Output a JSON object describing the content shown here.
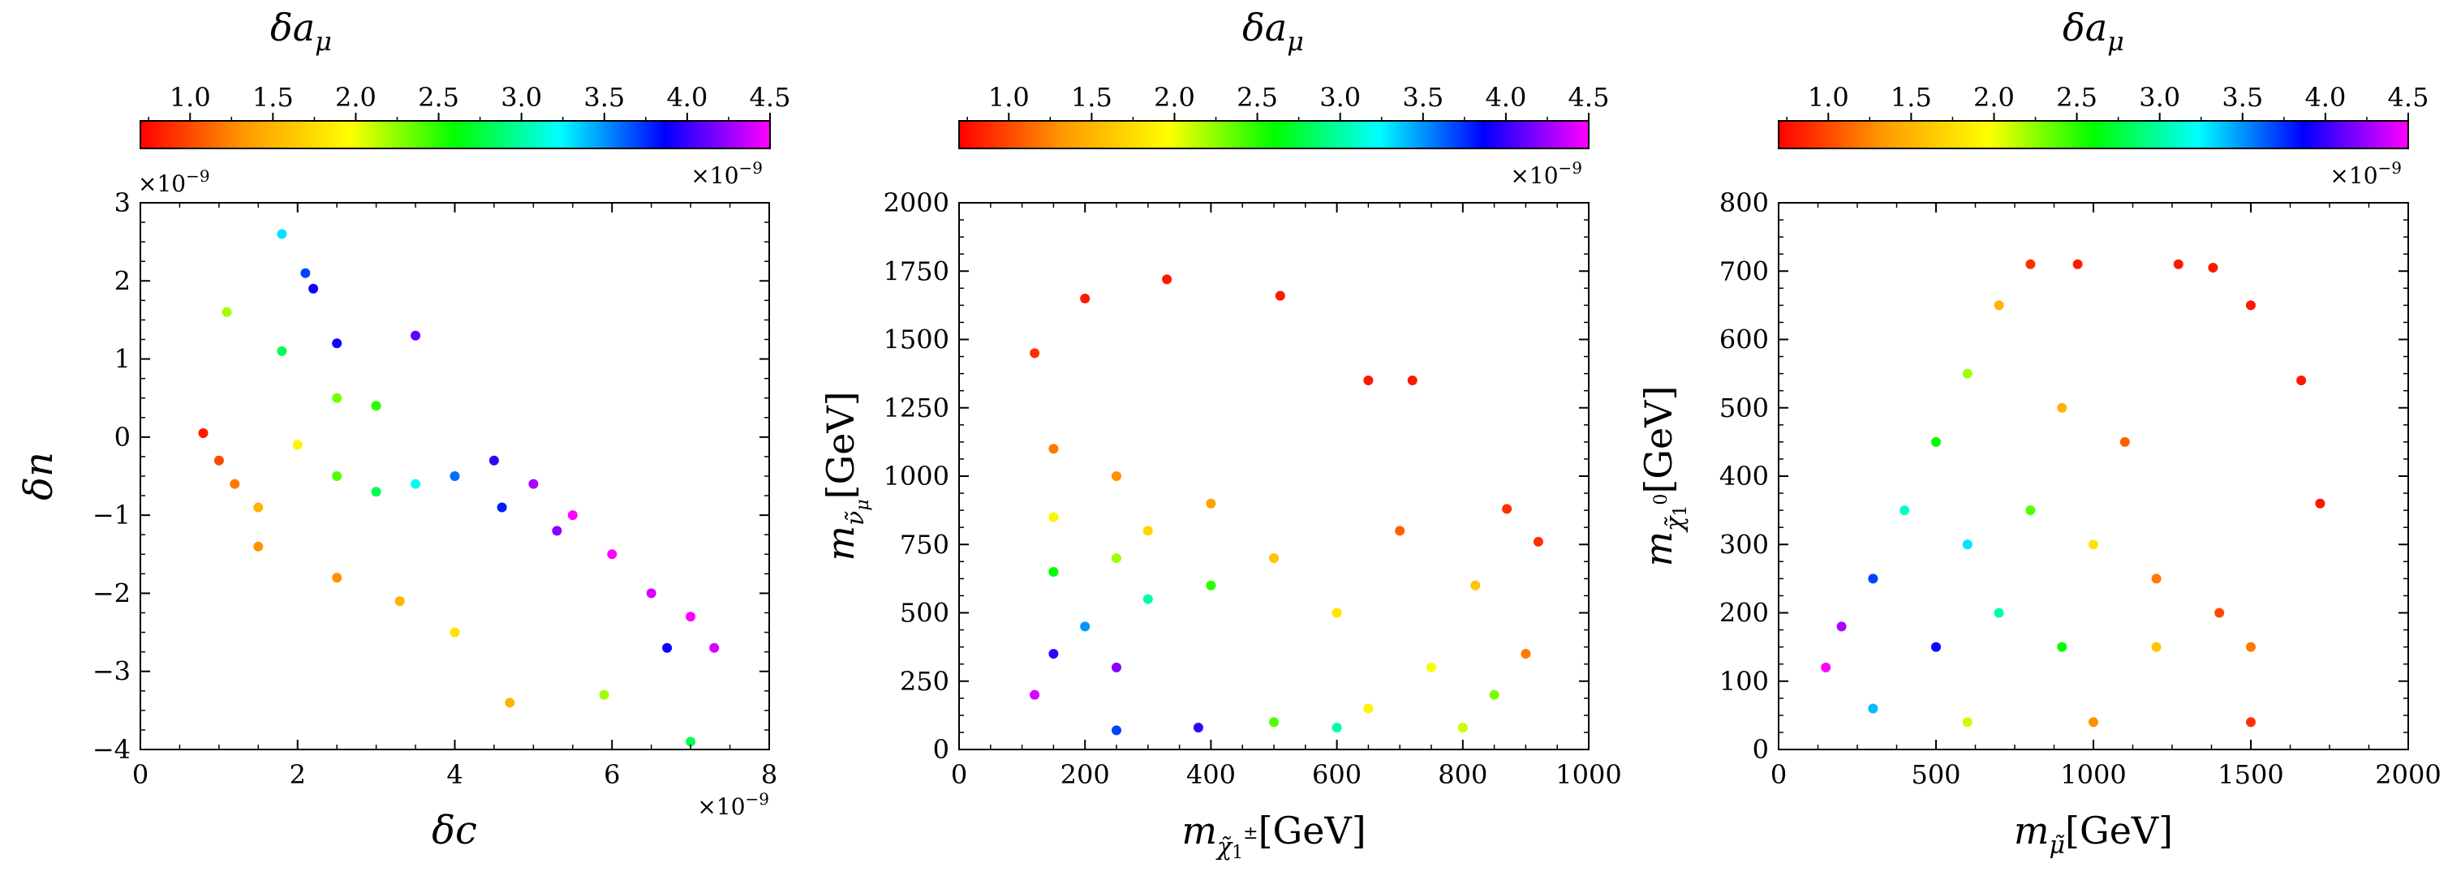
{
  "figure_title": "",
  "colorbar": {
    "symbol": "δ",
    "var": "a",
    "sub": "μ",
    "ticks": [
      "1.0",
      "1.5",
      "2.0",
      "2.5",
      "3.0",
      "3.5",
      "4.0",
      "4.5"
    ],
    "tick_values": [
      1.0,
      1.5,
      2.0,
      2.5,
      3.0,
      3.5,
      4.0,
      4.5
    ],
    "range": [
      0.7,
      4.5
    ],
    "exponent": "×10",
    "exponent_power": "−9",
    "colormap": "gist_rainbow",
    "colormap_stops": [
      "#ff0000",
      "#ff9900",
      "#ffff00",
      "#00ff00",
      "#00ffff",
      "#0000ff",
      "#ff00ff"
    ]
  },
  "chart_data": [
    {
      "type": "scatter",
      "title": "",
      "xlabel": "δc",
      "ylabel": "δn",
      "xlim": [
        0,
        8
      ],
      "ylim": [
        -4,
        3
      ],
      "xticks": [
        "0",
        "2",
        "4",
        "6",
        "8"
      ],
      "xtick_values": [
        0,
        2,
        4,
        6,
        8
      ],
      "yticks": [
        "−4",
        "−3",
        "−2",
        "−1",
        "0",
        "1",
        "2",
        "3"
      ],
      "ytick_values": [
        -4,
        -3,
        -2,
        -1,
        0,
        1,
        2,
        3
      ],
      "x_exponent": "×10",
      "y_exponent": "×10",
      "exp_power": "−9",
      "color_by": "δa_μ (×10⁻⁹)",
      "points": [
        [
          0.8,
          0.05,
          0.8
        ],
        [
          1.0,
          -0.3,
          1.0
        ],
        [
          1.2,
          -0.6,
          1.2
        ],
        [
          1.5,
          -0.9,
          1.5
        ],
        [
          1.5,
          -1.4,
          1.3
        ],
        [
          1.8,
          2.6,
          3.3
        ],
        [
          2.1,
          2.1,
          3.7
        ],
        [
          2.2,
          1.9,
          3.9
        ],
        [
          2.5,
          1.2,
          3.9
        ],
        [
          3.5,
          1.3,
          4.1
        ],
        [
          1.1,
          1.6,
          2.2
        ],
        [
          1.8,
          1.1,
          2.8
        ],
        [
          2.0,
          -0.1,
          1.9
        ],
        [
          2.5,
          -0.5,
          2.4
        ],
        [
          3.0,
          -0.7,
          2.8
        ],
        [
          3.5,
          -0.6,
          3.2
        ],
        [
          4.0,
          -0.5,
          3.6
        ],
        [
          4.5,
          -0.3,
          4.0
        ],
        [
          5.0,
          -0.6,
          4.3
        ],
        [
          5.5,
          -1.0,
          4.5
        ],
        [
          6.0,
          -1.5,
          4.5
        ],
        [
          6.5,
          -2.0,
          4.4
        ],
        [
          7.0,
          -2.3,
          4.5
        ],
        [
          7.3,
          -2.7,
          4.4
        ],
        [
          4.7,
          -3.4,
          1.5
        ],
        [
          5.9,
          -3.3,
          2.2
        ],
        [
          7.0,
          -3.9,
          2.8
        ],
        [
          4.0,
          -2.5,
          1.8
        ],
        [
          3.3,
          -2.1,
          1.5
        ],
        [
          2.5,
          -1.8,
          1.3
        ],
        [
          6.7,
          -2.7,
          3.9
        ],
        [
          3.0,
          0.4,
          2.5
        ],
        [
          2.5,
          0.5,
          2.3
        ],
        [
          4.6,
          -0.9,
          3.8
        ],
        [
          5.3,
          -1.2,
          4.2
        ]
      ]
    },
    {
      "type": "scatter",
      "title": "",
      "xlabel": "m_χ̃₁^± [GeV]",
      "ylabel": "m_ν̃_μ [GeV]",
      "xlim": [
        0,
        1000
      ],
      "ylim": [
        0,
        2000
      ],
      "xticks": [
        "0",
        "200",
        "400",
        "600",
        "800",
        "1000"
      ],
      "xtick_values": [
        0,
        200,
        400,
        600,
        800,
        1000
      ],
      "yticks": [
        "0",
        "250",
        "500",
        "750",
        "1000",
        "1250",
        "1500",
        "1750",
        "2000"
      ],
      "ytick_values": [
        0,
        250,
        500,
        750,
        1000,
        1250,
        1500,
        1750,
        2000
      ],
      "color_by": "δa_μ (×10⁻⁹)",
      "points": [
        [
          120,
          1450,
          0.9
        ],
        [
          200,
          1650,
          0.8
        ],
        [
          330,
          1720,
          0.8
        ],
        [
          510,
          1660,
          0.8
        ],
        [
          650,
          1350,
          0.8
        ],
        [
          720,
          1350,
          0.8
        ],
        [
          870,
          880,
          0.9
        ],
        [
          920,
          760,
          0.9
        ],
        [
          820,
          600,
          1.6
        ],
        [
          700,
          800,
          1.1
        ],
        [
          150,
          1100,
          1.2
        ],
        [
          250,
          1000,
          1.3
        ],
        [
          400,
          900,
          1.4
        ],
        [
          300,
          800,
          1.7
        ],
        [
          150,
          850,
          1.9
        ],
        [
          250,
          700,
          2.2
        ],
        [
          150,
          650,
          2.6
        ],
        [
          300,
          550,
          3.0
        ],
        [
          200,
          450,
          3.5
        ],
        [
          150,
          350,
          4.0
        ],
        [
          120,
          200,
          4.4
        ],
        [
          250,
          300,
          4.2
        ],
        [
          400,
          600,
          2.5
        ],
        [
          500,
          700,
          1.6
        ],
        [
          600,
          500,
          1.8
        ],
        [
          750,
          300,
          2.0
        ],
        [
          850,
          200,
          2.3
        ],
        [
          900,
          350,
          1.2
        ],
        [
          500,
          100,
          2.4
        ],
        [
          650,
          150,
          1.9
        ],
        [
          250,
          70,
          3.7
        ],
        [
          380,
          80,
          4.0
        ],
        [
          800,
          80,
          2.1
        ],
        [
          600,
          80,
          3.0
        ]
      ]
    },
    {
      "type": "scatter",
      "title": "",
      "xlabel": "m_μ̃ [GeV]",
      "ylabel": "m_χ̃₁⁰ [GeV]",
      "xlim": [
        0,
        2000
      ],
      "ylim": [
        0,
        800
      ],
      "xticks": [
        "0",
        "500",
        "1000",
        "1500",
        "2000"
      ],
      "xtick_values": [
        0,
        500,
        1000,
        1500,
        2000
      ],
      "yticks": [
        "0",
        "100",
        "200",
        "300",
        "400",
        "500",
        "600",
        "700",
        "800"
      ],
      "ytick_values": [
        0,
        100,
        200,
        300,
        400,
        500,
        600,
        700,
        800
      ],
      "color_by": "δa_μ (×10⁻⁹)",
      "points": [
        [
          800,
          710,
          0.9
        ],
        [
          950,
          710,
          0.8
        ],
        [
          1270,
          710,
          0.8
        ],
        [
          1380,
          705,
          0.8
        ],
        [
          1660,
          540,
          0.8
        ],
        [
          1720,
          360,
          0.8
        ],
        [
          1500,
          650,
          0.8
        ],
        [
          700,
          650,
          1.5
        ],
        [
          600,
          550,
          2.2
        ],
        [
          500,
          450,
          2.6
        ],
        [
          400,
          350,
          3.1
        ],
        [
          300,
          250,
          3.7
        ],
        [
          200,
          180,
          4.3
        ],
        [
          150,
          120,
          4.5
        ],
        [
          600,
          300,
          3.3
        ],
        [
          800,
          350,
          2.4
        ],
        [
          1000,
          300,
          1.8
        ],
        [
          1200,
          250,
          1.2
        ],
        [
          1400,
          200,
          1.0
        ],
        [
          900,
          500,
          1.5
        ],
        [
          1100,
          450,
          1.1
        ],
        [
          700,
          200,
          3.0
        ],
        [
          500,
          150,
          3.9
        ],
        [
          900,
          150,
          2.6
        ],
        [
          1200,
          150,
          1.6
        ],
        [
          1500,
          150,
          1.2
        ],
        [
          300,
          60,
          3.4
        ],
        [
          600,
          40,
          2.1
        ],
        [
          1000,
          40,
          1.3
        ],
        [
          1500,
          40,
          0.9
        ]
      ]
    }
  ]
}
